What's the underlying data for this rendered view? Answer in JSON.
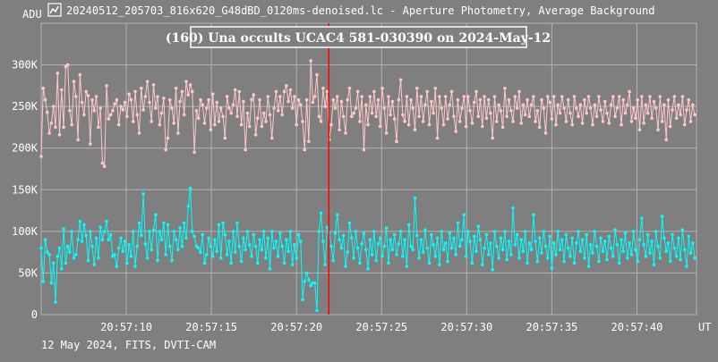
{
  "window": {
    "title": "20240512_205703_816x620_G48dBD_0120ms-denoised.lc - Aperture Photometry, Average Background",
    "icon": "lightcurve-app-icon"
  },
  "footer": {
    "text": "12 May 2024, FITS, DVTI-CAM"
  },
  "colors": {
    "background": "#7f7f7f",
    "grid": "#b3b3b3",
    "axis_text": "#ffffff",
    "series_target": "#ffc8c8",
    "series_comparison": "#00ffff",
    "event_marker": "#ff0000",
    "title_box_border": "#ffffff"
  },
  "chart_data": {
    "type": "line",
    "title": "(160) Una occults UCAC4 581-030390 on 2024-May-12",
    "ylabel": "ADU",
    "xlabel": "UT",
    "ylim": [
      0,
      350000
    ],
    "xlim": [
      5.0,
      43.5
    ],
    "x_unit": "seconds after 20:57:00 UT",
    "y_ticks": [
      {
        "value": 0,
        "label": "0"
      },
      {
        "value": 50000,
        "label": "50K"
      },
      {
        "value": 100000,
        "label": "100K"
      },
      {
        "value": 150000,
        "label": "150K"
      },
      {
        "value": 200000,
        "label": "200K"
      },
      {
        "value": 250000,
        "label": "250K"
      },
      {
        "value": 300000,
        "label": "300K"
      }
    ],
    "x_ticks": [
      {
        "value": 10,
        "label": "20:57:10"
      },
      {
        "value": 15,
        "label": "20:57:15"
      },
      {
        "value": 20,
        "label": "20:57:20"
      },
      {
        "value": 25,
        "label": "20:57:25"
      },
      {
        "value": 30,
        "label": "20:57:30"
      },
      {
        "value": 35,
        "label": "20:57:35"
      },
      {
        "value": 40,
        "label": "20:57:40"
      }
    ],
    "grid": true,
    "event_marker_x": 21.9,
    "series": [
      {
        "name": "",
        "color": "#ffc8c8",
        "sample_interval_s": 0.12,
        "x_start": 5.0,
        "values": [
          190000,
          272000,
          258000,
          243000,
          218000,
          230000,
          250000,
          225000,
          290000,
          216000,
          270000,
          225000,
          298000,
          300000,
          245000,
          228000,
          280000,
          262000,
          210000,
          288000,
          255000,
          240000,
          268000,
          263000,
          205000,
          258000,
          245000,
          262000,
          225000,
          248000,
          182000,
          178000,
          275000,
          235000,
          240000,
          245000,
          253000,
          258000,
          228000,
          250000,
          246000,
          255000,
          238000,
          265000,
          258000,
          232000,
          268000,
          240000,
          218000,
          272000,
          246000,
          262000,
          280000,
          255000,
          232000,
          276000,
          248000,
          262000,
          228000,
          242000,
          260000,
          198000,
          212000,
          258000,
          248000,
          230000,
          272000,
          218000,
          256000,
          268000,
          240000,
          280000,
          264000,
          276000,
          268000,
          195000,
          245000,
          236000,
          258000,
          252000,
          230000,
          248000,
          258000,
          222000,
          265000,
          228000,
          255000,
          232000,
          248000,
          238000,
          212000,
          262000,
          248000,
          242000,
          252000,
          270000,
          238000,
          268000,
          228000,
          256000,
          198000,
          242000,
          226000,
          258000,
          264000,
          216000,
          236000,
          258000,
          226000,
          242000,
          232000,
          262000,
          240000,
          212000,
          248000,
          268000,
          245000,
          262000,
          240000,
          268000,
          275000,
          256000,
          270000,
          248000,
          262000,
          228000,
          258000,
          252000,
          232000,
          198000,
          258000,
          208000,
          305000,
          255000,
          262000,
          288000,
          238000,
          232000,
          272000,
          250000,
          268000,
          210000,
          228000,
          258000,
          248000,
          262000,
          222000,
          256000,
          238000,
          218000,
          258000,
          272000,
          238000,
          242000,
          248000,
          268000,
          232000,
          262000,
          198000,
          252000,
          228000,
          262000,
          242000,
          268000,
          238000,
          258000,
          226000,
          272000,
          248000,
          218000,
          262000,
          240000,
          256000,
          235000,
          208000,
          258000,
          282000,
          240000,
          232000,
          262000,
          228000,
          258000,
          248000,
          222000,
          272000,
          238000,
          262000,
          232000,
          252000,
          268000,
          228000,
          256000,
          242000,
          272000,
          212000,
          262000,
          248000,
          228000,
          262000,
          235000,
          252000,
          268000,
          238000,
          220000,
          258000,
          232000,
          248000,
          262000,
          226000,
          262000,
          245000,
          230000,
          255000,
          268000,
          238000,
          258000,
          226000,
          262000,
          236000,
          258000,
          242000,
          212000,
          262000,
          232000,
          252000,
          245000,
          225000,
          272000,
          238000,
          258000,
          245000,
          232000,
          262000,
          248000,
          268000,
          230000,
          252000,
          240000,
          258000,
          238000,
          252000,
          262000,
          232000,
          245000,
          225000,
          258000,
          248000,
          218000,
          262000,
          255000,
          235000,
          262000,
          228000,
          252000,
          242000,
          262000,
          248000,
          232000,
          258000,
          242000,
          228000,
          262000,
          248000,
          238000,
          252000,
          230000,
          258000,
          242000,
          262000,
          248000,
          228000,
          252000,
          238000,
          262000,
          246000,
          232000,
          256000,
          242000,
          230000,
          252000,
          262000,
          238000,
          248000,
          262000,
          228000,
          258000,
          242000,
          252000,
          268000,
          232000,
          248000,
          236000,
          258000,
          222000,
          262000,
          230000,
          252000,
          242000,
          262000,
          236000,
          256000,
          248000,
          222000,
          262000,
          232000,
          252000,
          210000,
          258000,
          226000,
          246000,
          262000,
          236000,
          252000,
          240000,
          262000,
          228000,
          246000,
          258000,
          232000,
          252000,
          240000,
          262000,
          230000,
          256000,
          242000,
          252000,
          262000,
          228000
        ]
      },
      {
        "name": "",
        "color": "#00ffff",
        "sample_interval_s": 0.12,
        "x_start": 5.0,
        "values": [
          80000,
          40000,
          90000,
          75000,
          72000,
          38000,
          62000,
          15000,
          70000,
          80000,
          55000,
          103000,
          62000,
          82000,
          75000,
          100000,
          68000,
          72000,
          90000,
          112000,
          88000,
          108000,
          95000,
          65000,
          100000,
          82000,
          60000,
          92000,
          68000,
          105000,
          90000,
          100000,
          112000,
          90000,
          96000,
          70000,
          72000,
          58000,
          80000,
          92000,
          76000,
          88000,
          62000,
          84000,
          70000,
          100000,
          58000,
          82000,
          110000,
          95000,
          145000,
          85000,
          68000,
          100000,
          78000,
          102000,
          120000,
          65000,
          100000,
          90000,
          110000,
          72000,
          108000,
          82000,
          65000,
          100000,
          90000,
          78000,
          104000,
          82000,
          110000,
          92000,
          130000,
          152000,
          100000,
          94000,
          82000,
          80000,
          75000,
          96000,
          62000,
          72000,
          92000,
          82000,
          70000,
          90000,
          76000,
          108000,
          68000,
          110000,
          96000,
          72000,
          88000,
          62000,
          100000,
          75000,
          110000,
          82000,
          64000,
          92000,
          78000,
          100000,
          84000,
          70000,
          96000,
          82000,
          62000,
          90000,
          78000,
          100000,
          68000,
          92000,
          55000,
          100000,
          80000,
          88000,
          70000,
          98000,
          82000,
          62000,
          90000,
          76000,
          100000,
          60000,
          84000,
          68000,
          96000,
          88000,
          18000,
          40000,
          50000,
          42000,
          35000,
          38000,
          38000,
          5000,
          100000,
          122000,
          88000,
          60000,
          105000,
          98000,
          82000,
          65000,
          98000,
          120000,
          90000,
          80000,
          95000,
          58000,
          75000,
          110000,
          92000,
          68000,
          100000,
          80000,
          62000,
          85000,
          98000,
          78000,
          55000,
          90000,
          72000,
          100000,
          65000,
          85000,
          92000,
          70000,
          82000,
          104000,
          62000,
          90000,
          78000,
          96000,
          72000,
          85000,
          100000,
          70000,
          90000,
          58000,
          108000,
          82000,
          78000,
          140000,
          95000,
          68000,
          90000,
          75000,
          102000,
          80000,
          62000,
          96000,
          84000,
          70000,
          92000,
          60000,
          100000,
          78000,
          86000,
          64000,
          98000,
          80000,
          92000,
          72000,
          110000,
          82000,
          90000,
          120000,
          70000,
          100000,
          88000,
          62000,
          94000,
          76000,
          106000,
          90000,
          60000,
          80000,
          96000,
          72000,
          86000,
          54000,
          100000,
          82000,
          68000,
          92000,
          78000,
          100000,
          66000,
          88000,
          72000,
          128000,
          84000,
          96000,
          68000,
          90000,
          76000,
          100000,
          62000,
          86000,
          78000,
          120000,
          88000,
          64000,
          92000,
          74000,
          100000,
          82000,
          68000,
          94000,
          56000,
          86000,
          72000,
          100000,
          78000,
          90000,
          64000,
          96000,
          80000,
          70000,
          92000,
          62000,
          86000,
          100000,
          76000,
          90000,
          68000,
          96000,
          58000,
          84000,
          74000,
          100000,
          82000,
          64000,
          92000,
          76000,
          88000,
          66000,
          94000,
          80000,
          70000,
          102000,
          84000,
          62000,
          90000,
          76000,
          98000,
          68000,
          86000,
          72000,
          100000,
          78000,
          64000,
          90000,
          116000,
          84000,
          70000,
          96000,
          74000,
          88000,
          60000,
          100000,
          82000,
          68000,
          118000,
          92000,
          76000,
          86000,
          64000,
          96000,
          80000,
          70000,
          92000,
          66000,
          102000,
          78000,
          58000,
          94000,
          74000,
          86000,
          68000,
          98000,
          80000,
          110000,
          84000,
          62000,
          36000,
          90000,
          76000,
          56000
        ]
      }
    ]
  }
}
